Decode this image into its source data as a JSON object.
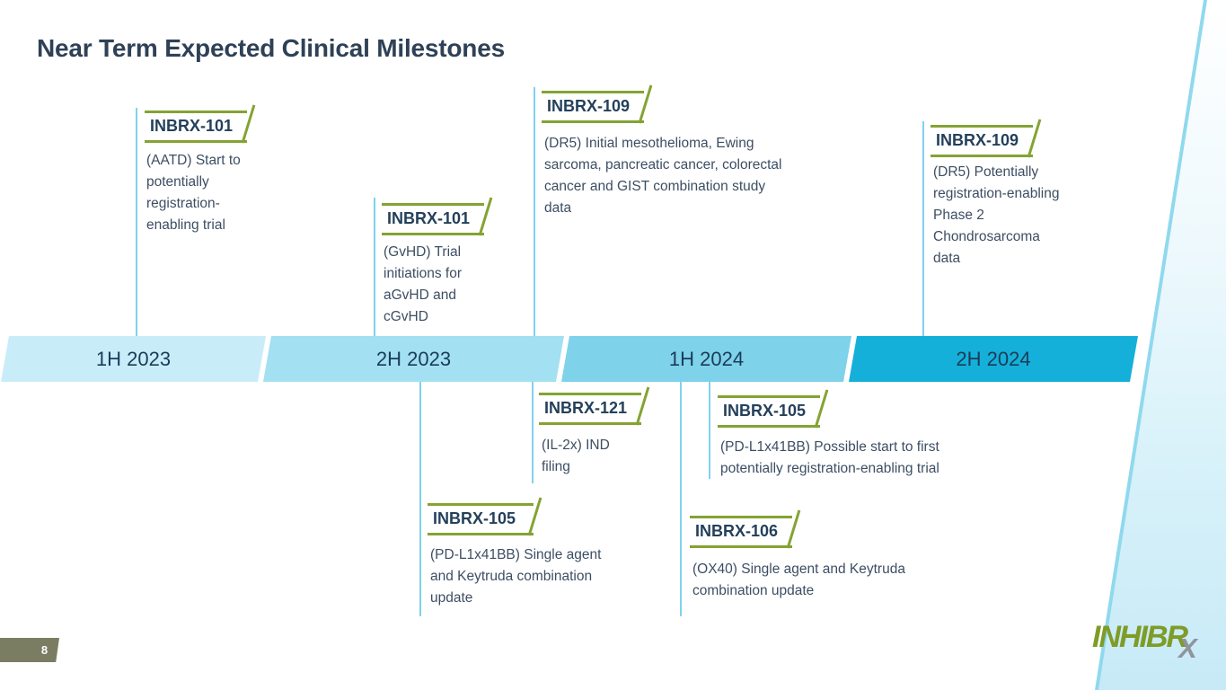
{
  "slide": {
    "title": "Near Term Expected Clinical Milestones",
    "page_number": "8",
    "logo_text": "INHIBR",
    "logo_suffix": "X"
  },
  "timeline": {
    "segments": [
      {
        "label": "1H 2023",
        "color": "#c9ecf9"
      },
      {
        "label": "2H 2023",
        "color": "#a2e0f2"
      },
      {
        "label": "1H 2024",
        "color": "#7ed2ea"
      },
      {
        "label": "2H 2024",
        "color": "#14b0d9"
      }
    ]
  },
  "milestones": [
    {
      "code": "INBRX-101",
      "description": "(AATD) Start to potentially registration-enabling trial"
    },
    {
      "code": "INBRX-101",
      "description": "(GvHD) Trial initiations for aGvHD and cGvHD"
    },
    {
      "code": "INBRX-109",
      "description": "(DR5) Initial mesothelioma, Ewing sarcoma, pancreatic cancer, colorectal cancer and GIST combination study data"
    },
    {
      "code": "INBRX-109",
      "description": "(DR5) Potentially registration-enabling Phase 2 Chondrosarcoma data"
    },
    {
      "code": "INBRX-121",
      "description": "(IL-2x) IND filing"
    },
    {
      "code": "INBRX-105",
      "description": "(PD-L1x41BB) Single agent and Keytruda combination update"
    },
    {
      "code": "INBRX-105",
      "description": "(PD-L1x41BB) Possible start to first potentially registration-enabling trial"
    },
    {
      "code": "INBRX-106",
      "description": "(OX40) Single agent and Keytruda combination update"
    }
  ],
  "colors": {
    "title_text": "#2e4157",
    "tag_border": "#84a333",
    "tag_text": "#24405b",
    "body_text": "#3d4e63",
    "connector_line": "#7fd2ee",
    "timeline_text": "#1b3c59",
    "badge_bg": "#7b7d63",
    "logo_green": "#7e9c27",
    "logo_gray": "#8e959c"
  }
}
